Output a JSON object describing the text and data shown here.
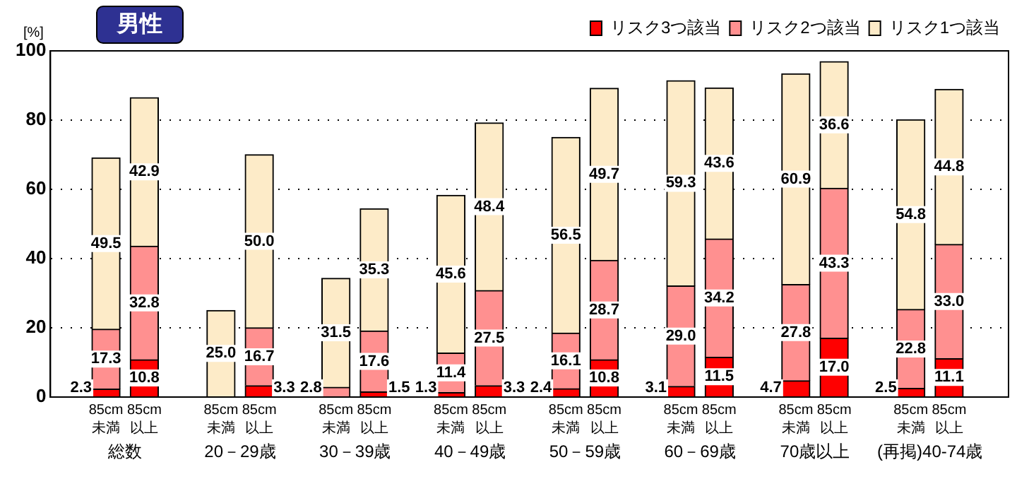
{
  "chart_data": {
    "type": "bar",
    "title": "男性",
    "ylabel": "[%]",
    "stacked": true,
    "categories": [
      "85cm\n未満",
      "85cm\n以上",
      "85cm\n未満",
      "85cm\n以上",
      "85cm\n未満",
      "85cm\n以上",
      "85cm\n未満",
      "85cm\n以上",
      "85cm\n未満",
      "85cm\n以上",
      "85cm\n未満",
      "85cm\n以上",
      "85cm\n未満",
      "85cm\n以上",
      "85cm\n未満",
      "85cm\n以上"
    ],
    "annotations": [
      "総数",
      "20－29歳",
      "30－39歳",
      "40－49歳",
      "50－59歳",
      "60－69歳",
      "70歳以上",
      "(再掲)40-74歳"
    ],
    "series": [
      {
        "name": "リスク3つ該当",
        "color": "#ff0000",
        "values": [
          2.3,
          10.8,
          0,
          3.3,
          0,
          1.5,
          1.3,
          3.3,
          2.4,
          10.8,
          3.1,
          11.5,
          4.7,
          17.0,
          2.5,
          11.1
        ],
        "value_labels": [
          "2.3",
          "10.8",
          null,
          "3.3",
          null,
          "1.5",
          "1.3",
          "3.3",
          "2.4",
          "10.8",
          "3.1",
          "11.5",
          "4.7",
          "17.0",
          "2.5",
          "11.1"
        ]
      },
      {
        "name": "リスク2つ該当",
        "color": "#ff9090",
        "values": [
          17.3,
          32.8,
          0,
          16.7,
          2.8,
          17.6,
          11.4,
          27.5,
          16.1,
          28.7,
          29.0,
          34.2,
          27.8,
          43.3,
          22.8,
          33.0
        ],
        "value_labels": [
          "17.3",
          "32.8",
          null,
          "16.7",
          "2.8",
          "17.6",
          "11.4",
          "27.5",
          "16.1",
          "28.7",
          "29.0",
          "34.2",
          "27.8",
          "43.3",
          "22.8",
          "33.0"
        ]
      },
      {
        "name": "リスク1つ該当",
        "color": "#fdebc8",
        "values": [
          49.5,
          42.9,
          25.0,
          50.0,
          31.5,
          35.3,
          45.6,
          48.4,
          56.5,
          49.7,
          59.3,
          43.6,
          60.9,
          36.6,
          54.8,
          44.8
        ],
        "value_labels": [
          "49.5",
          "42.9",
          "25.0",
          "50.0",
          "31.5",
          "35.3",
          "45.6",
          "48.4",
          "56.5",
          "49.7",
          "59.3",
          "43.6",
          "60.9",
          "36.6",
          "54.8",
          "44.8"
        ]
      }
    ],
    "ylim": [
      0,
      100
    ],
    "yticks": [
      0,
      20,
      40,
      60,
      80,
      100
    ],
    "grid": "y",
    "legend": "top right"
  }
}
